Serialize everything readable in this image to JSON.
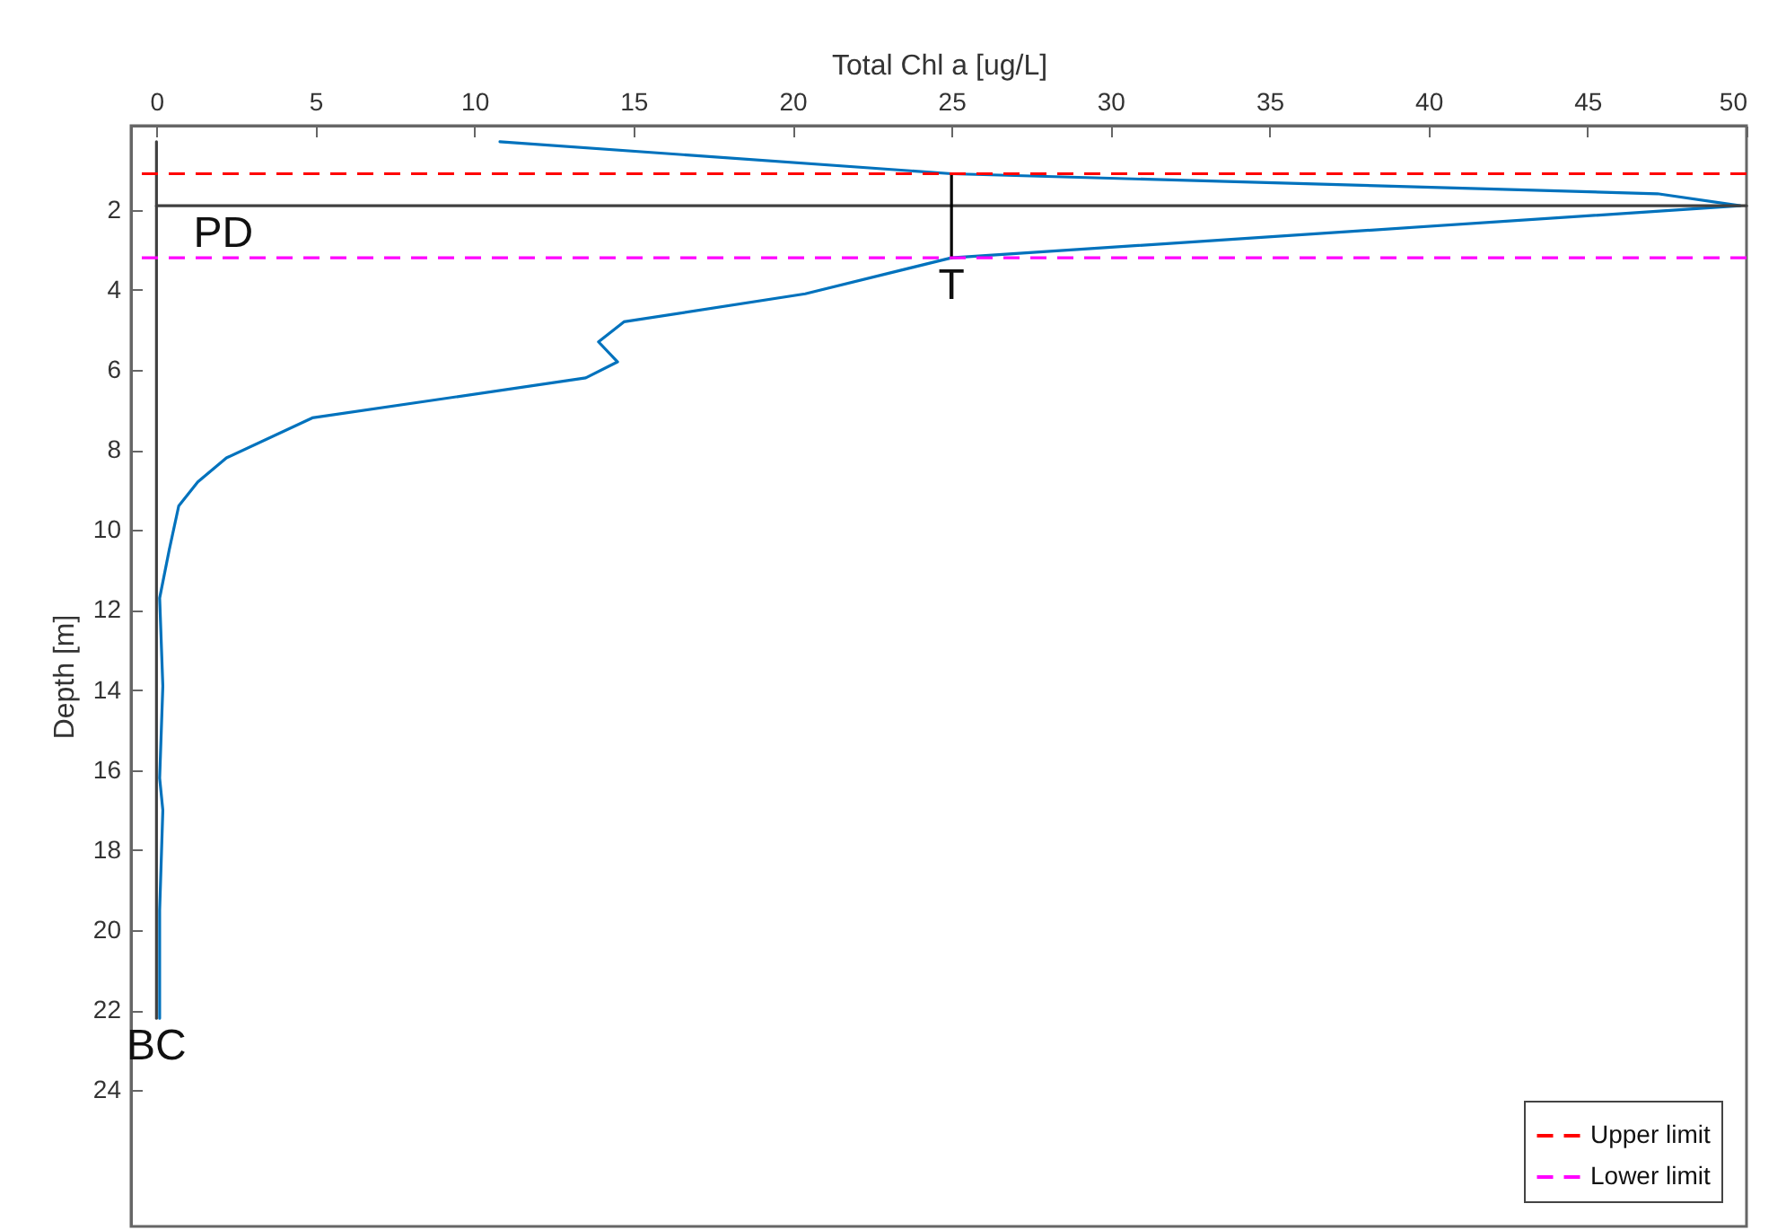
{
  "chart_data": {
    "type": "line",
    "xlabel": "Total Chl a [ug/L]",
    "ylabel": "Depth [m]",
    "xlim": [
      -0.8,
      50
    ],
    "ylim": [
      27.4,
      -0.1
    ],
    "xticks": [
      0,
      5,
      10,
      15,
      20,
      25,
      30,
      35,
      40,
      45,
      50
    ],
    "yticks": [
      2,
      4,
      6,
      8,
      10,
      12,
      14,
      16,
      18,
      20,
      22,
      24
    ],
    "grid": false,
    "legend": "bottom right",
    "series": [
      {
        "color": "#0072bd",
        "x": [
          10.8,
          25,
          47.2,
          49.8,
          25,
          20.4,
          14.7,
          13.9,
          14.5,
          13.5,
          4.9,
          2.2,
          1.3,
          0.7,
          0.4,
          0.1,
          0.2,
          0.1,
          0.2,
          0.1,
          0.1
        ],
        "values": [
          0.3,
          1.1,
          1.6,
          1.9,
          3.2,
          4.1,
          4.8,
          5.3,
          5.8,
          6.2,
          7.2,
          8.2,
          8.8,
          9.4,
          10.5,
          11.7,
          13.9,
          16.2,
          17,
          19.5,
          22.2
        ]
      },
      {
        "color": "#404040",
        "x": [
          0,
          50
        ],
        "values": [
          1.9,
          1.9
        ]
      },
      {
        "color": "#000000",
        "x": [
          25,
          25
        ],
        "values": [
          1.1,
          3.2
        ]
      },
      {
        "color": "#404040",
        "x": [
          0,
          0
        ],
        "values": [
          0.3,
          22.2
        ]
      }
    ],
    "ref_lines": [
      {
        "axis": "y",
        "value": 1.1,
        "label": "Upper limit",
        "color": "#ff0000",
        "line_style": "dashed"
      },
      {
        "axis": "y",
        "value": 3.2,
        "label": "Lower limit",
        "color": "#ff00ff",
        "line_style": "dashed"
      }
    ],
    "annotations": [
      {
        "text": "PD",
        "x": 2.1,
        "y": 1.9
      },
      {
        "text": "T",
        "x": 25,
        "y": 3.2
      },
      {
        "text": "BC",
        "x": 0,
        "y": 22.2
      }
    ]
  }
}
